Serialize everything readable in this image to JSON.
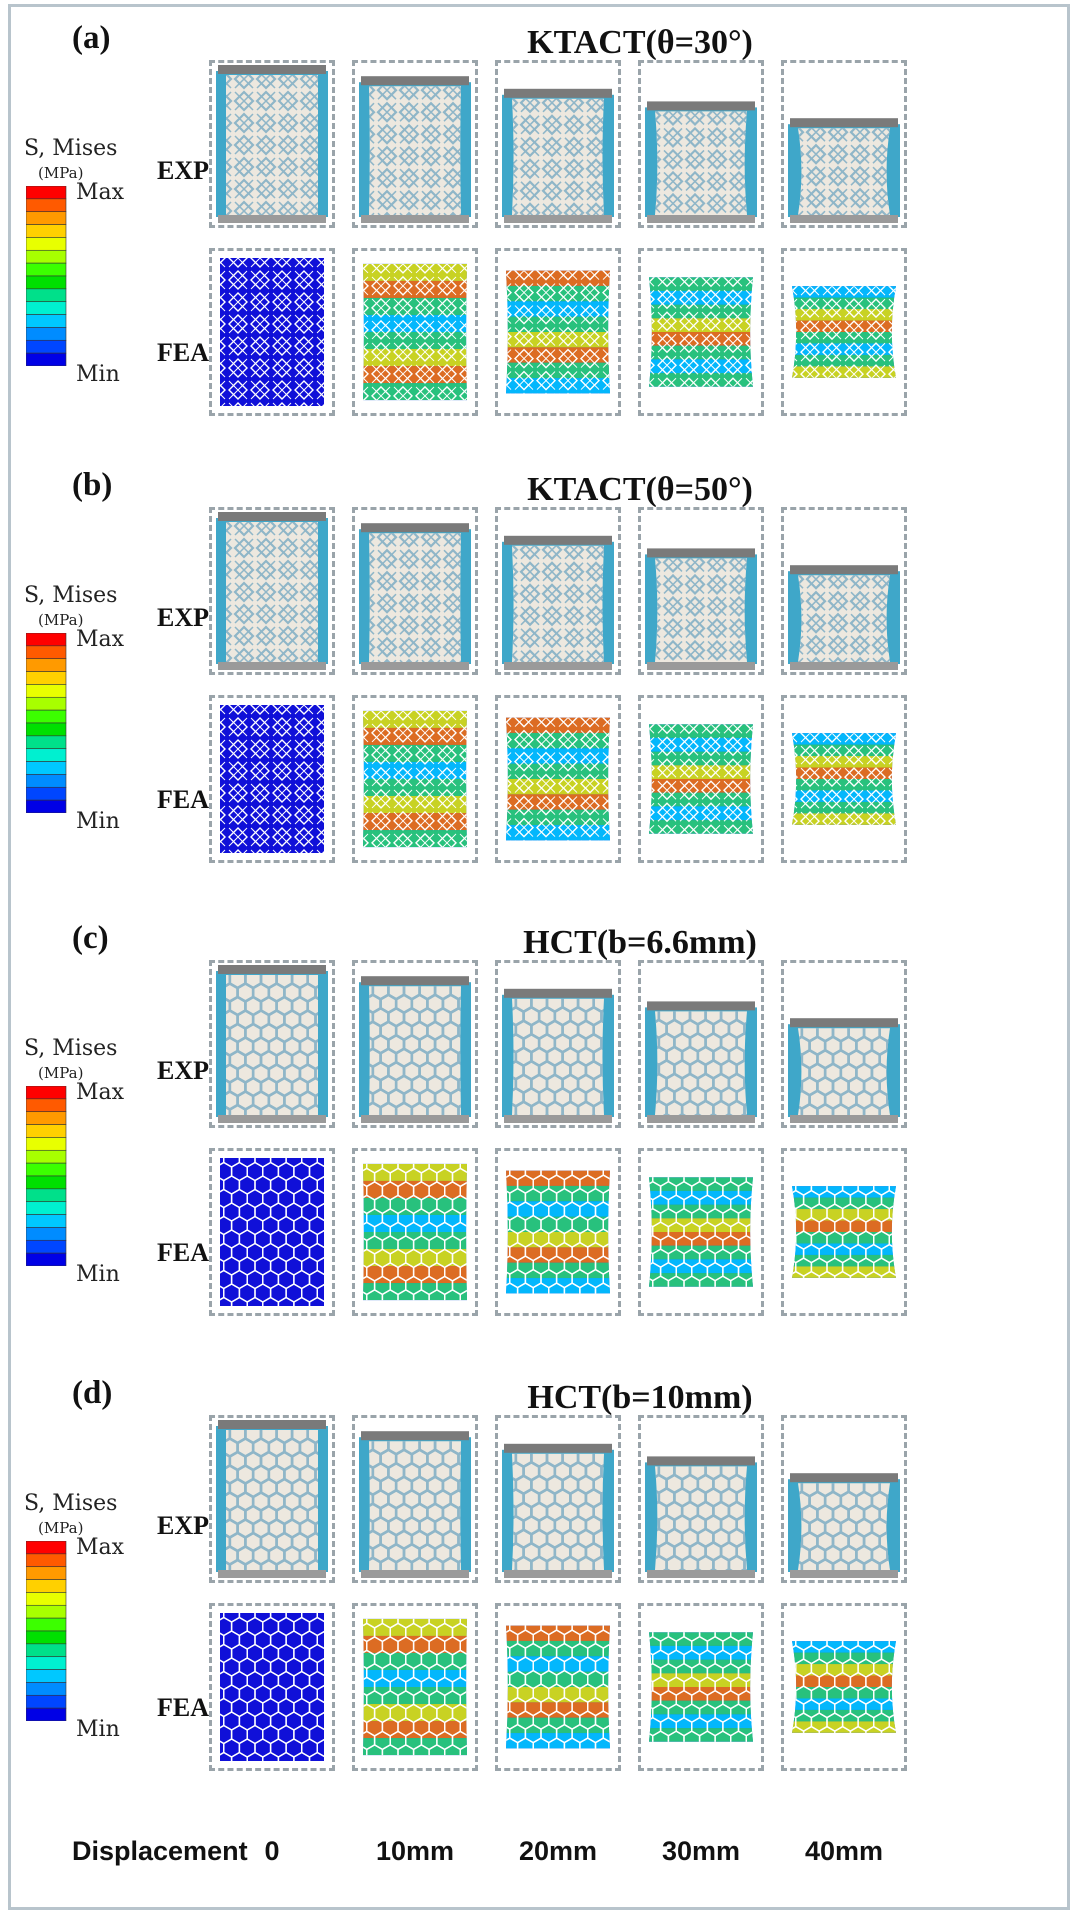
{
  "legend": {
    "title": "S, Mises",
    "unit": "(MPa)",
    "max": "Max",
    "min": "Min"
  },
  "row_labels": {
    "exp": "EXP",
    "fea": "FEA"
  },
  "panels": [
    {
      "letter": "(a)",
      "title": "KTACT(θ=30°)",
      "lattice": "kagome"
    },
    {
      "letter": "(b)",
      "title": "KTACT(θ=50°)",
      "lattice": "kagome"
    },
    {
      "letter": "(c)",
      "title": "HCT(b=6.6mm)",
      "lattice": "honeycomb"
    },
    {
      "letter": "(d)",
      "title": "HCT(b=10mm)",
      "lattice": "honeycomb"
    }
  ],
  "footer": {
    "label": "Displacement",
    "values": [
      "0",
      "10mm",
      "20mm",
      "30mm",
      "40mm"
    ]
  },
  "colors": {
    "legend_scale": [
      "#ff0000",
      "#ff5a00",
      "#ff9a00",
      "#ffd000",
      "#e8ff00",
      "#a8ff00",
      "#3cff00",
      "#00e000",
      "#00e08a",
      "#00f0d0",
      "#00c8ff",
      "#008cff",
      "#0046ff",
      "#0000e6"
    ],
    "background_blue": "#3fa7c9",
    "specimen": "#ede8df",
    "fea_base": "#1010d8",
    "frame": "#b8c4cc"
  }
}
